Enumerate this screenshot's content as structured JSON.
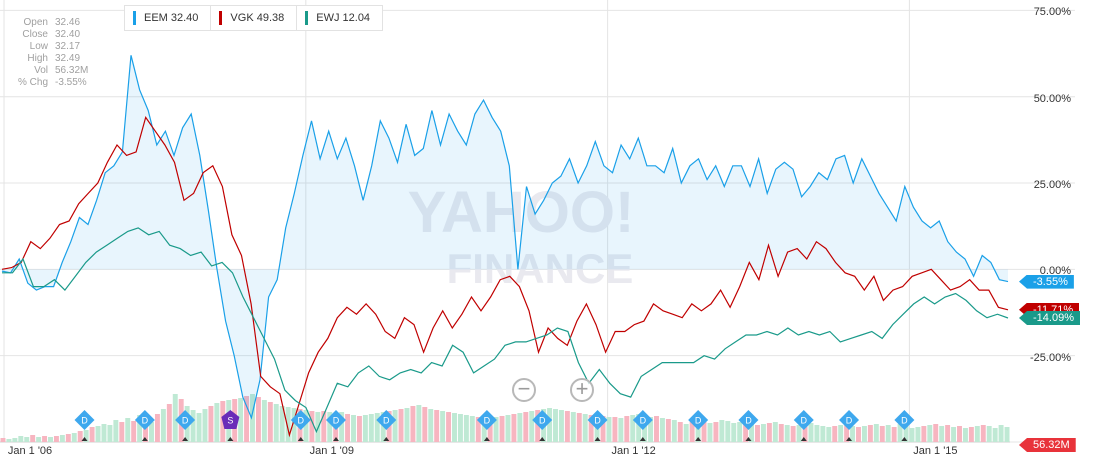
{
  "ohlc": {
    "rows": [
      {
        "label": "Open",
        "value": "32.46"
      },
      {
        "label": "Close",
        "value": "32.40"
      },
      {
        "label": "Low",
        "value": "32.17"
      },
      {
        "label": "High",
        "value": "32.49"
      },
      {
        "label": "Vol",
        "value": "56.32M"
      },
      {
        "label": "% Chg",
        "value": "-3.55%"
      }
    ]
  },
  "legend": [
    {
      "label": "EEM 32.40",
      "color": "#1aa0e8"
    },
    {
      "label": "VGK 49.38",
      "color": "#c00000"
    },
    {
      "label": "EWJ 12.04",
      "color": "#1a9a8a"
    }
  ],
  "zoom": {
    "out_glyph": "−",
    "in_glyph": "+"
  },
  "watermark": {
    "line1": "YAHOO!",
    "line2": "FINANCE"
  },
  "price_tags": {
    "eem": {
      "label": "-3.55%",
      "color": "#1aa0e8",
      "value": -3.55
    },
    "vgk": {
      "label": "-11.71%",
      "color": "#c00000",
      "value": -11.71
    },
    "ewj": {
      "label": "-14.09%",
      "color": "#1a9a8a",
      "value": -14.09
    },
    "volume": {
      "label": "56.32M",
      "color": "#e8333a"
    }
  },
  "chart_data": {
    "type": "line",
    "x_ticks": [
      {
        "label": "Jan 1 '06",
        "x": 2006.0
      },
      {
        "label": "Jan 1 '09",
        "x": 2009.0
      },
      {
        "label": "Jan 1 '12",
        "x": 2012.0
      },
      {
        "label": "Jan 1 '15",
        "x": 2015.0
      }
    ],
    "y_ticks": [
      {
        "label": "75.00%",
        "y": 75
      },
      {
        "label": "50.00%",
        "y": 50
      },
      {
        "label": "25.00%",
        "y": 25
      },
      {
        "label": "0.00%",
        "y": 0
      },
      {
        "label": "-25.00%",
        "y": -25
      },
      {
        "label": "-50.00%",
        "y": -50
      }
    ],
    "xlim": [
      2005.96,
      2016.0
    ],
    "ylim": [
      -50,
      78
    ],
    "grid": true,
    "series": [
      {
        "name": "EEM",
        "color": "#1aa0e8",
        "fill": true,
        "values": [
          -0.5,
          -1,
          3,
          -4,
          -6,
          -5,
          -5,
          2,
          8,
          15,
          13,
          20,
          28,
          30,
          34,
          62,
          52,
          46,
          36,
          40,
          33,
          41,
          45,
          33,
          17,
          0,
          -15,
          -25,
          -37,
          -43,
          -32,
          -8,
          -3,
          12,
          22,
          33,
          43,
          32,
          40,
          32,
          38,
          30,
          20,
          30,
          43,
          38,
          31,
          42,
          33,
          35,
          46,
          36,
          45,
          40,
          36,
          45,
          49,
          44,
          40,
          30,
          0,
          24,
          16,
          20,
          25,
          27,
          32,
          25,
          30,
          37,
          30,
          28,
          36,
          32,
          38,
          30,
          30,
          28,
          35,
          25,
          30,
          32,
          26,
          30,
          24,
          30,
          30,
          24,
          32,
          22,
          29,
          31,
          29,
          21,
          24,
          28,
          26,
          32,
          33,
          25,
          32,
          27,
          22,
          18,
          14,
          24,
          18,
          14,
          12,
          14,
          8,
          5,
          3,
          -2,
          4,
          2,
          -3,
          -3.55
        ]
      },
      {
        "name": "VGK",
        "color": "#c00000",
        "fill": false,
        "values": [
          0,
          0.5,
          2,
          8,
          6,
          9,
          13,
          14,
          19,
          22,
          25,
          31,
          36,
          33,
          34,
          44,
          40,
          36,
          31,
          20,
          22,
          28,
          30,
          24,
          10,
          4,
          -10,
          -31,
          -34,
          -36,
          -48,
          -39,
          -30,
          -24,
          -20,
          -14,
          -11,
          -13,
          -10,
          -13,
          -18,
          -20,
          -14,
          -16,
          -24,
          -17,
          -12,
          -17,
          -13,
          -8,
          -12,
          -8,
          -3,
          -2,
          -5,
          -12,
          -24,
          -17,
          -20,
          -22,
          -15,
          -10,
          -16,
          -24,
          -18,
          -18,
          -16,
          -15,
          -10,
          -12,
          -13,
          -14,
          -10,
          -12,
          -10,
          -6,
          -11,
          -5,
          2,
          -3,
          7,
          -2,
          5,
          6,
          3,
          8,
          6,
          2,
          -1,
          -2,
          -6,
          -2,
          -9,
          -6,
          -5,
          -2,
          -1,
          0,
          -3,
          -6,
          -5,
          -3,
          -6,
          -6,
          -11,
          -11.71
        ]
      },
      {
        "name": "EWJ",
        "color": "#1a9a8a",
        "fill": false,
        "values": [
          -1,
          -1,
          3,
          -5,
          -5,
          -3,
          -6,
          -2,
          2,
          5,
          7,
          9,
          11,
          12,
          10,
          11,
          7,
          6,
          4,
          5,
          1,
          2,
          -1,
          -8,
          -14,
          -20,
          -26,
          -35,
          -38,
          -40,
          -47,
          -40,
          -33,
          -34,
          -30,
          -28,
          -31,
          -32,
          -30,
          -29,
          -30,
          -27,
          -28,
          -22,
          -24,
          -30,
          -28,
          -26,
          -22,
          -21,
          -21,
          -20,
          -19,
          -17,
          -18,
          -27,
          -33,
          -29,
          -33,
          -36,
          -37,
          -31,
          -29,
          -27,
          -27,
          -27,
          -27,
          -25,
          -26,
          -23,
          -21,
          -19,
          -19,
          -18,
          -19,
          -17,
          -19,
          -18,
          -19,
          -18,
          -21,
          -20,
          -19,
          -18,
          -20,
          -16,
          -13,
          -10,
          -8,
          -10,
          -8,
          -7,
          -9,
          -12,
          -14,
          -13,
          -14.09
        ]
      },
      {
        "name": "Volume",
        "type": "bar",
        "values": [
          4,
          3,
          4,
          6,
          5,
          7,
          5,
          6,
          5,
          6,
          7,
          8,
          9,
          11,
          12,
          15,
          16,
          18,
          17,
          22,
          20,
          24,
          21,
          27,
          24,
          20,
          28,
          33,
          38,
          48,
          43,
          36,
          32,
          29,
          33,
          36,
          39,
          41,
          42,
          43,
          44,
          46,
          48,
          45,
          42,
          40,
          38,
          36,
          35,
          34,
          33,
          32,
          31,
          30,
          31,
          30,
          29,
          30,
          28,
          27,
          26,
          27,
          28,
          29,
          30,
          31,
          32,
          33,
          34,
          36,
          37,
          35,
          33,
          32,
          31,
          30,
          29,
          28,
          27,
          26,
          25,
          24,
          23,
          25,
          26,
          27,
          28,
          29,
          30,
          31,
          32,
          33,
          34,
          33,
          32,
          31,
          30,
          29,
          28,
          27,
          27,
          26,
          25,
          25,
          24,
          26,
          27,
          28,
          27,
          25,
          26,
          24,
          23,
          22,
          20,
          18,
          22,
          21,
          20,
          19,
          20,
          22,
          21,
          19,
          20,
          18,
          19,
          17,
          18,
          19,
          20,
          18,
          17,
          16,
          17,
          18,
          19,
          17,
          16,
          15,
          16,
          17,
          18,
          16,
          15,
          16,
          17,
          18,
          16,
          17,
          15,
          18,
          16,
          14,
          15,
          16,
          17,
          18,
          16,
          17,
          15,
          16,
          14,
          15,
          16,
          17,
          16,
          14,
          17,
          15
        ]
      }
    ],
    "events": [
      {
        "label": "D",
        "x": 2006.8
      },
      {
        "label": "D",
        "x": 2007.4
      },
      {
        "label": "D",
        "x": 2007.8
      },
      {
        "label": "S",
        "x": 2008.25
      },
      {
        "label": "D",
        "x": 2008.95
      },
      {
        "label": "D",
        "x": 2009.3
      },
      {
        "label": "D",
        "x": 2009.8
      },
      {
        "label": "D",
        "x": 2010.8
      },
      {
        "label": "D",
        "x": 2011.35
      },
      {
        "label": "D",
        "x": 2011.9
      },
      {
        "label": "D",
        "x": 2012.35
      },
      {
        "label": "D",
        "x": 2012.9
      },
      {
        "label": "D",
        "x": 2013.4
      },
      {
        "label": "D",
        "x": 2013.95
      },
      {
        "label": "D",
        "x": 2014.4
      },
      {
        "label": "D",
        "x": 2014.95
      }
    ]
  }
}
